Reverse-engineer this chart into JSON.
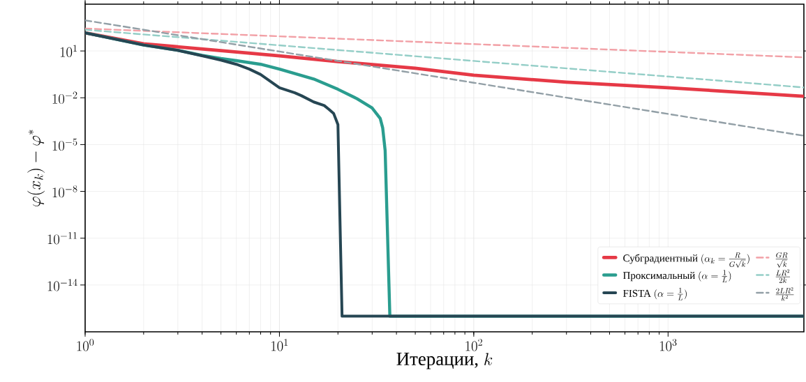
{
  "chart_data": {
    "type": "line",
    "log": "xy",
    "grid": true,
    "legend": "bottom right",
    "xlabel": "\\text{Итерации, }k",
    "ylabel": "\\varphi(x_k) - \\varphi^*",
    "xlim": [
      1,
      5000
    ],
    "ylim": [
      1e-17,
      10000
    ],
    "xticks": [
      {
        "value": 1,
        "label": "10^{0}"
      },
      {
        "value": 10,
        "label": "10^{1}"
      },
      {
        "value": 100,
        "label": "10^{2}"
      },
      {
        "value": 1000,
        "label": "10^{3}"
      }
    ],
    "yticks": [
      {
        "value": 1e-14,
        "label": "10^{-14}"
      },
      {
        "value": 1e-11,
        "label": "10^{-11}"
      },
      {
        "value": 1e-08,
        "label": "10^{-8}"
      },
      {
        "value": 1e-05,
        "label": "10^{-5}"
      },
      {
        "value": 0.01,
        "label": "10^{-2}"
      },
      {
        "value": 10,
        "label": "10^{1}"
      }
    ],
    "series": [
      {
        "name": "\\text{Субградиентный }(\\alpha_k = \\frac{R}{G\\sqrt{k}})",
        "color": "#e63946",
        "line_style": "solid",
        "x": [
          1,
          2,
          5,
          10,
          20,
          50,
          100,
          300,
          1000,
          5000
        ],
        "values": [
          145,
          29,
          10.5,
          4.9,
          2.1,
          0.78,
          0.28,
          0.1,
          0.044,
          0.0126
        ]
      },
      {
        "name": "\\text{Проксимальный }(\\alpha = \\frac{1}{L})",
        "color": "#2a9d8f",
        "line_style": "solid",
        "x": [
          1,
          2,
          3,
          4,
          5,
          6,
          8,
          10,
          15,
          20,
          25,
          30,
          33,
          34,
          35,
          37,
          5000
        ],
        "values": [
          145,
          24,
          11,
          5.2,
          3.3,
          2.4,
          1.4,
          0.69,
          0.16,
          0.035,
          0.0089,
          0.0022,
          0.00048,
          0.000115,
          4e-06,
          1e-16,
          1e-16
        ]
      },
      {
        "name": "\\text{FISTA }(\\alpha = \\frac{1}{L})",
        "color": "#264653",
        "line_style": "solid",
        "x": [
          1,
          2,
          3,
          4,
          5,
          6,
          7,
          8,
          10,
          12,
          13,
          15,
          17,
          18,
          19,
          20,
          21,
          5000
        ],
        "values": [
          145,
          24,
          11,
          4.9,
          2.6,
          1.4,
          0.69,
          0.31,
          0.044,
          0.021,
          0.0135,
          0.0054,
          0.0032,
          0.0018,
          0.001,
          0.00019,
          1e-16,
          1e-16
        ]
      },
      {
        "name": "\\frac{GR}{\\sqrt{k}}",
        "color": "#f2a0a6",
        "line_style": "dashed",
        "x": [
          1,
          10,
          100,
          1000,
          5000
        ],
        "values": [
          275,
          87,
          27.5,
          8.7,
          3.9
        ]
      },
      {
        "name": "\\frac{LR^2}{2k}",
        "color": "#94cec7",
        "line_style": "dashed",
        "x": [
          1,
          10,
          100,
          1000,
          5000
        ],
        "values": [
          230,
          23,
          2.3,
          0.23,
          0.046
        ]
      },
      {
        "name": "\\frac{2LR^2}{k^2}",
        "color": "#929fa6",
        "line_style": "dashed",
        "x": [
          1,
          10,
          100,
          1000,
          5000
        ],
        "values": [
          920,
          9.2,
          0.092,
          0.00092,
          3.68e-05
        ]
      }
    ]
  }
}
